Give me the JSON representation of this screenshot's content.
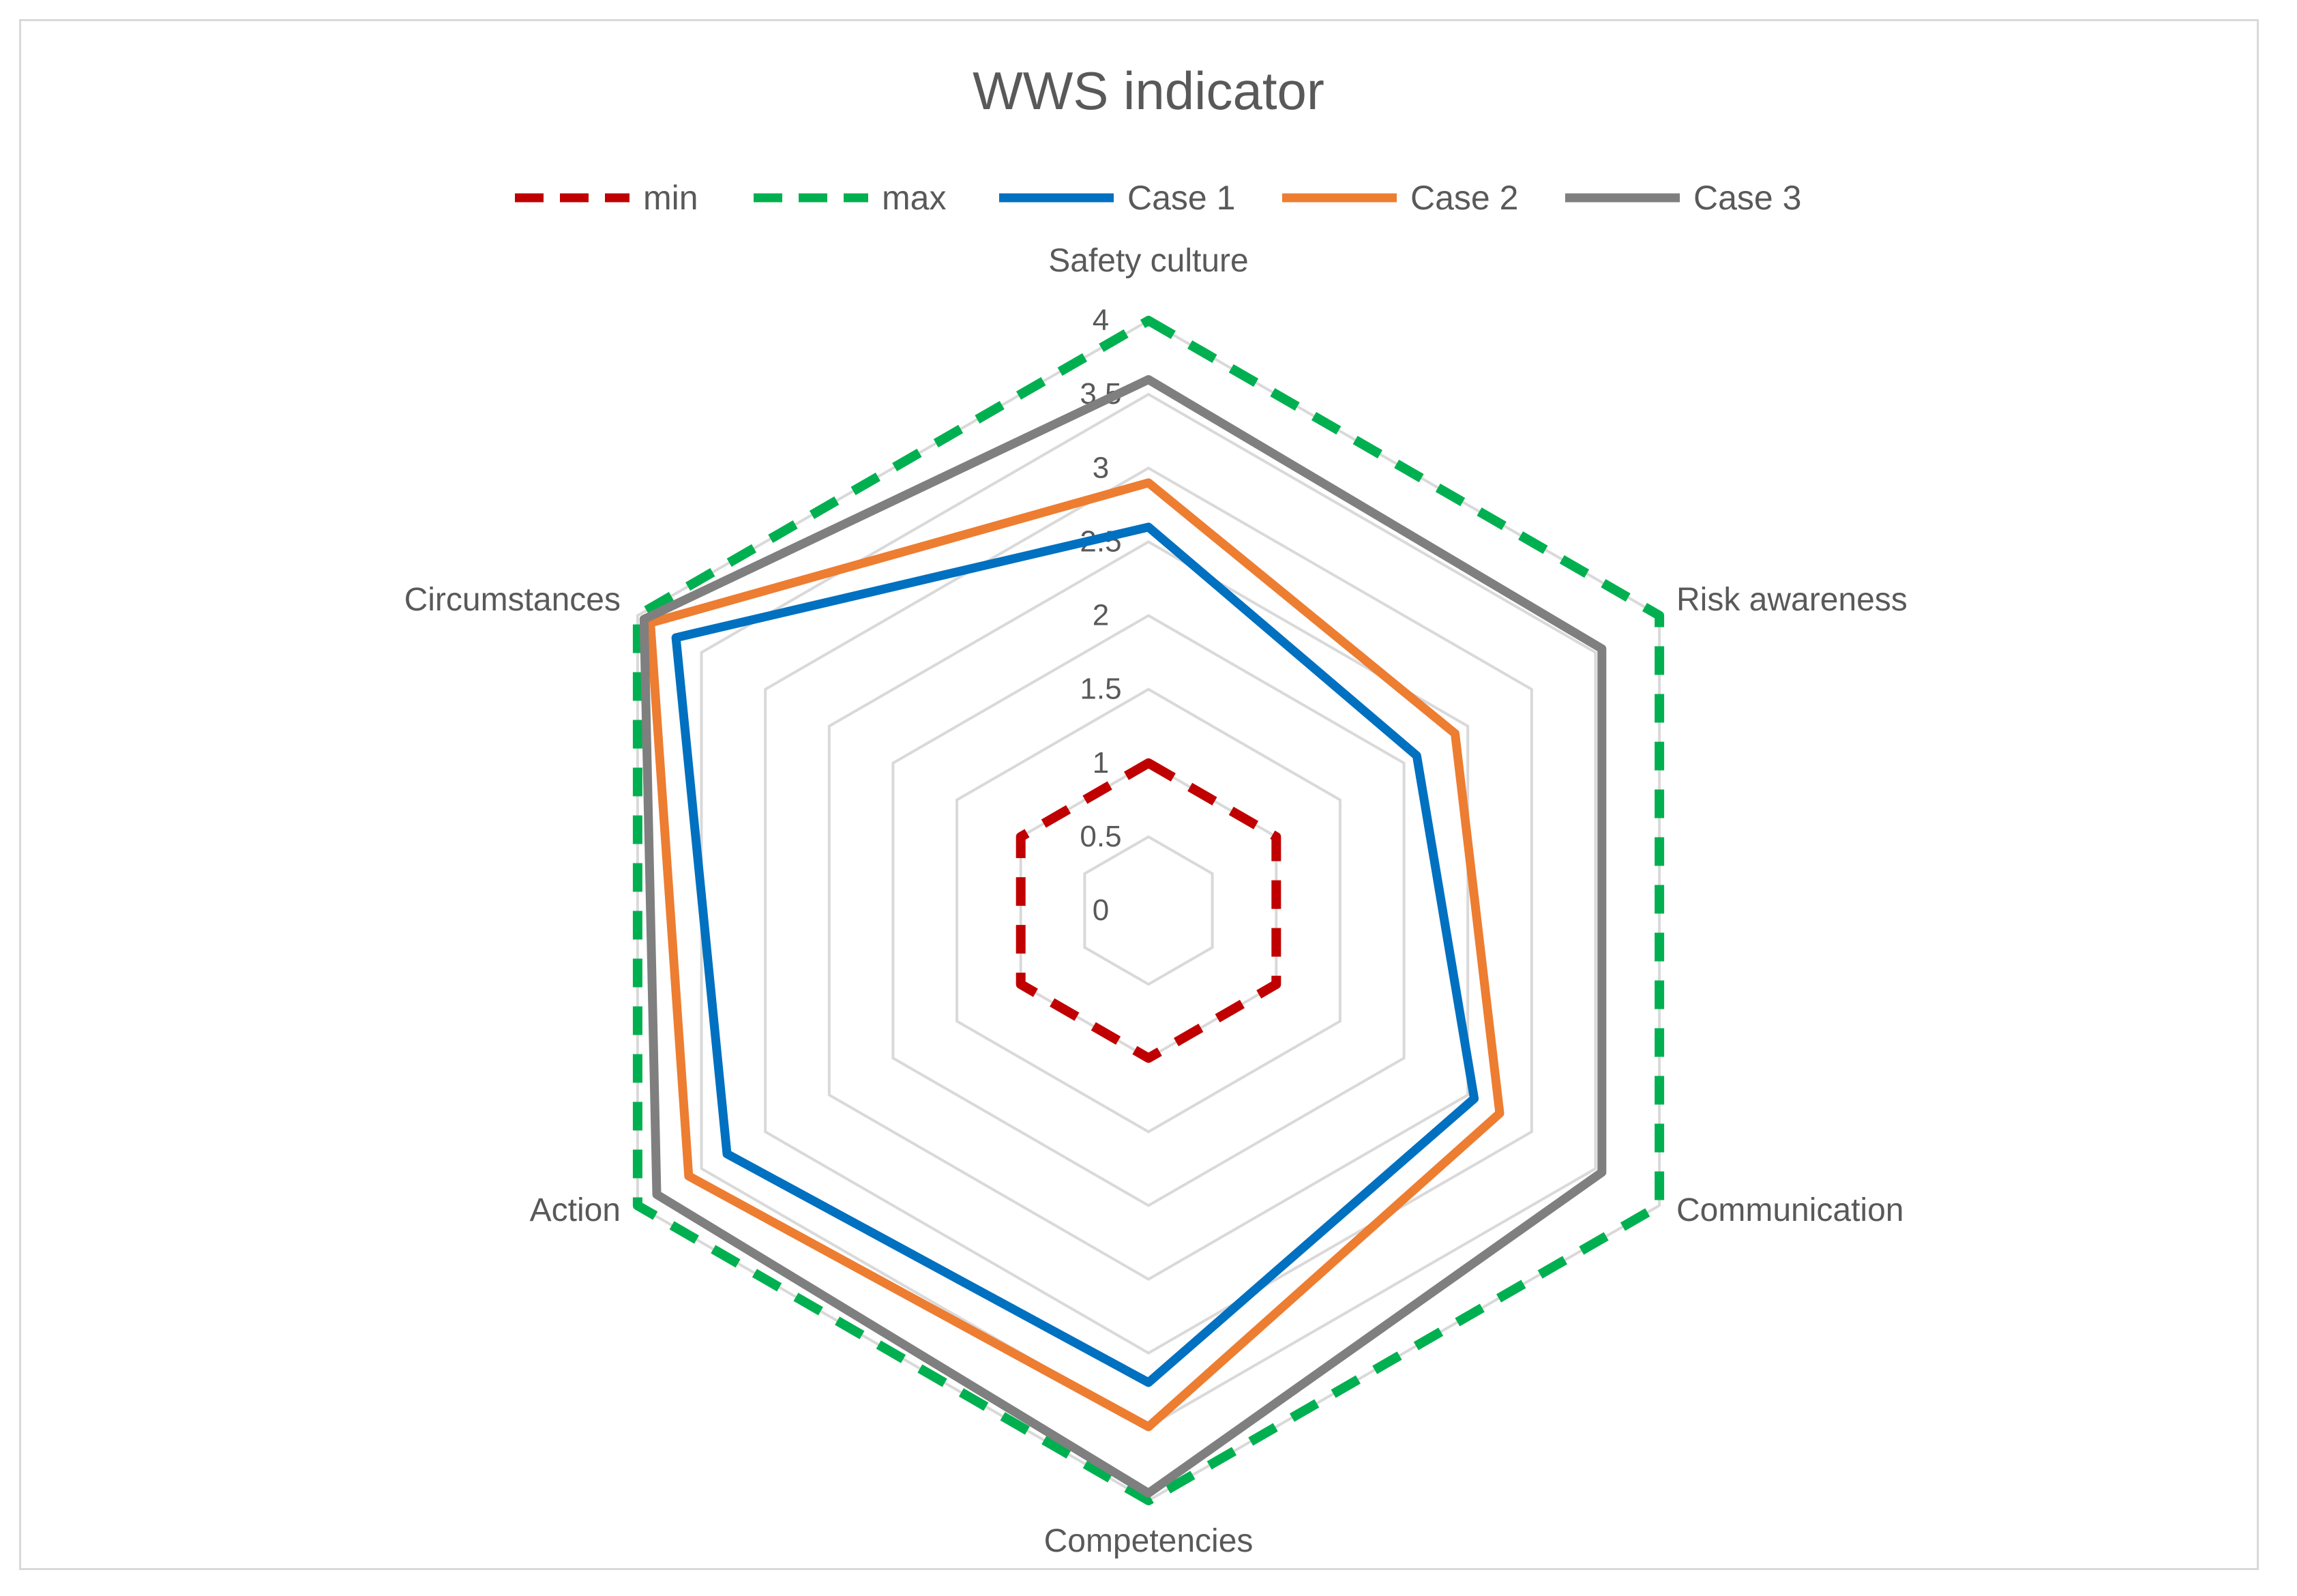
{
  "chart_data": {
    "type": "radar",
    "title": "WWS indicator",
    "categories": [
      "Safety culture",
      "Risk awareness",
      "Communication",
      "Competencies",
      "Action",
      "Circumstances"
    ],
    "rlim": [
      0,
      4
    ],
    "ticks": [
      "0",
      "0.5",
      "1",
      "1.5",
      "2",
      "2.5",
      "3",
      "3.5",
      "4"
    ],
    "grid": true,
    "legend_position": "top",
    "series": [
      {
        "name": "min",
        "values": [
          1,
          1,
          1,
          1,
          1,
          1
        ],
        "color": "#c00000",
        "style": "dashed"
      },
      {
        "name": "max",
        "values": [
          4,
          4,
          4,
          4,
          4,
          4
        ],
        "color": "#00b050",
        "style": "dashed"
      },
      {
        "name": "Case 1",
        "values": [
          2.6,
          2.1,
          2.55,
          3.2,
          3.3,
          3.7
        ],
        "color": "#0070c0",
        "style": "solid"
      },
      {
        "name": "Case 2",
        "values": [
          2.9,
          2.4,
          2.75,
          3.5,
          3.6,
          3.9
        ],
        "color": "#ed7d31",
        "style": "solid"
      },
      {
        "name": "Case 3",
        "values": [
          3.6,
          3.55,
          3.55,
          3.95,
          3.85,
          3.95
        ],
        "color": "#7f7f7f",
        "style": "solid"
      }
    ]
  }
}
